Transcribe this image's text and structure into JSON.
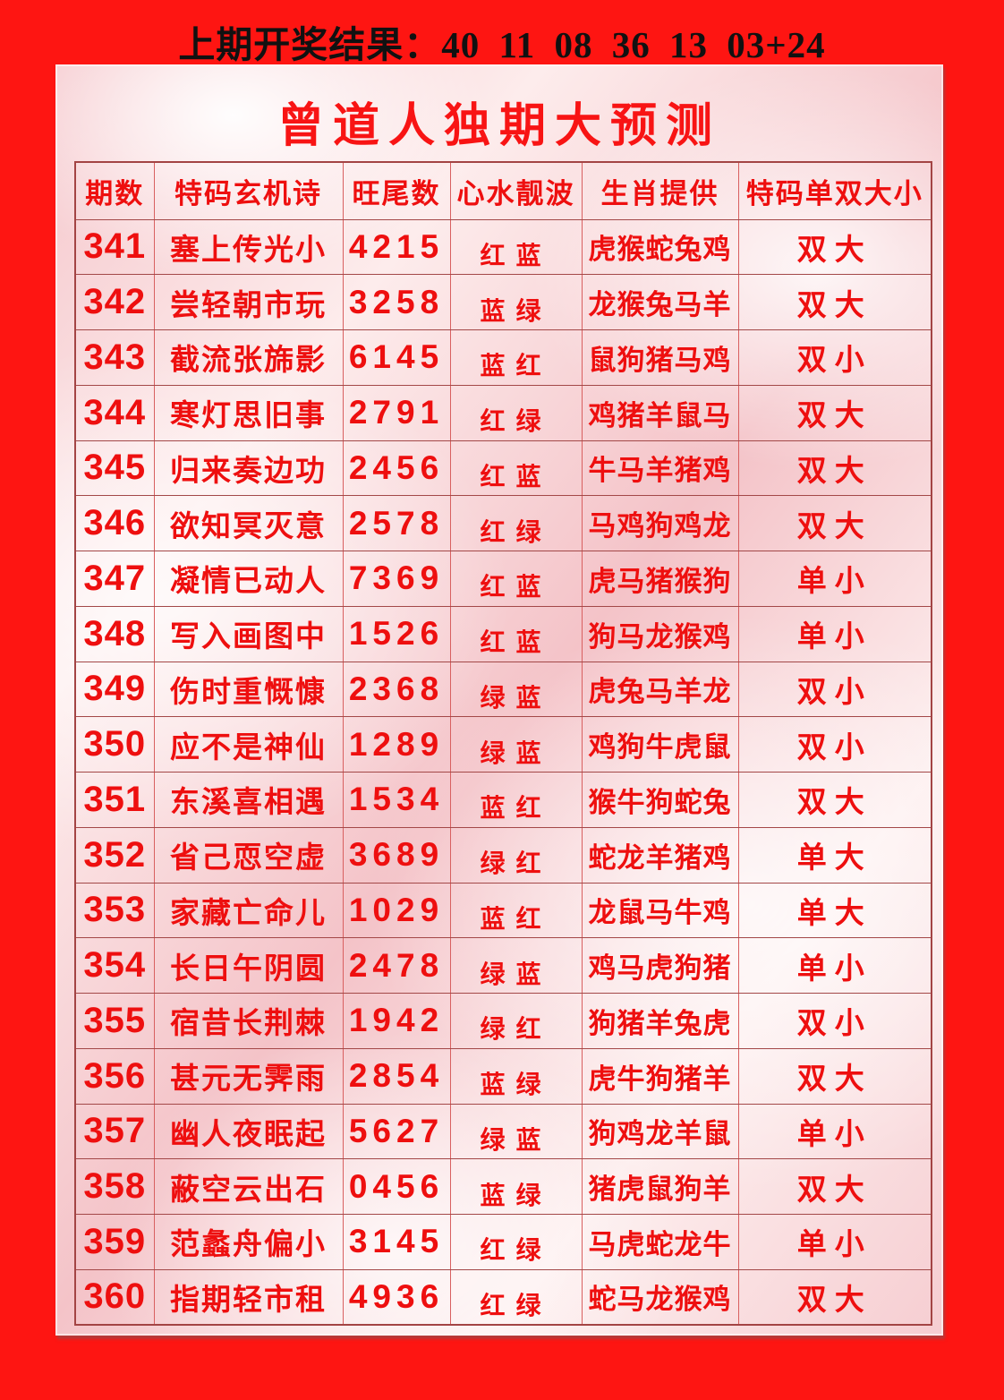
{
  "banner": {
    "text": "上期开奖结果：40 11 08 36 13 03+24"
  },
  "panel": {
    "title": "曾道人独期大预测"
  },
  "colors": {
    "page_background": "#fe1512",
    "table_text_red": "#ee0f0f",
    "title_red": "#f81414",
    "banner_text": "#111111",
    "grid_line": "#b84f4f"
  },
  "table": {
    "column_keys": [
      "issue",
      "poem",
      "tail",
      "wave",
      "zodiac",
      "size"
    ],
    "headers": [
      "期数",
      "特码玄机诗",
      "旺尾数",
      "心水靓波",
      "生肖提供",
      "特码单双大小"
    ],
    "rows": [
      {
        "issue": "341",
        "poem": "塞上传光小",
        "tail": "4215",
        "wave": "红蓝",
        "zodiac": "虎猴蛇兔鸡",
        "size": "双大"
      },
      {
        "issue": "342",
        "poem": "尝轻朝市玩",
        "tail": "3258",
        "wave": "蓝绿",
        "zodiac": "龙猴兔马羊",
        "size": "双大"
      },
      {
        "issue": "343",
        "poem": "截流张旆影",
        "tail": "6145",
        "wave": "蓝红",
        "zodiac": "鼠狗猪马鸡",
        "size": "双小"
      },
      {
        "issue": "344",
        "poem": "寒灯思旧事",
        "tail": "2791",
        "wave": "红绿",
        "zodiac": "鸡猪羊鼠马",
        "size": "双大"
      },
      {
        "issue": "345",
        "poem": "归来奏边功",
        "tail": "2456",
        "wave": "红蓝",
        "zodiac": "牛马羊猪鸡",
        "size": "双大"
      },
      {
        "issue": "346",
        "poem": "欲知冥灭意",
        "tail": "2578",
        "wave": "红绿",
        "zodiac": "马鸡狗鸡龙",
        "size": "双大"
      },
      {
        "issue": "347",
        "poem": "凝情已动人",
        "tail": "7369",
        "wave": "红蓝",
        "zodiac": "虎马猪猴狗",
        "size": "单小"
      },
      {
        "issue": "348",
        "poem": "写入画图中",
        "tail": "1526",
        "wave": "红蓝",
        "zodiac": "狗马龙猴鸡",
        "size": "单小"
      },
      {
        "issue": "349",
        "poem": "伤时重慨慷",
        "tail": "2368",
        "wave": "绿蓝",
        "zodiac": "虎兔马羊龙",
        "size": "双小"
      },
      {
        "issue": "350",
        "poem": "应不是神仙",
        "tail": "1289",
        "wave": "绿蓝",
        "zodiac": "鸡狗牛虎鼠",
        "size": "双小"
      },
      {
        "issue": "351",
        "poem": "东溪喜相遇",
        "tail": "1534",
        "wave": "蓝红",
        "zodiac": "猴牛狗蛇兔",
        "size": "双大"
      },
      {
        "issue": "352",
        "poem": "省己恧空虚",
        "tail": "3689",
        "wave": "绿红",
        "zodiac": "蛇龙羊猪鸡",
        "size": "单大"
      },
      {
        "issue": "353",
        "poem": "家藏亡命儿",
        "tail": "1029",
        "wave": "蓝红",
        "zodiac": "龙鼠马牛鸡",
        "size": "单大"
      },
      {
        "issue": "354",
        "poem": "长日午阴圆",
        "tail": "2478",
        "wave": "绿蓝",
        "zodiac": "鸡马虎狗猪",
        "size": "单小"
      },
      {
        "issue": "355",
        "poem": "宿昔长荆棘",
        "tail": "1942",
        "wave": "绿红",
        "zodiac": "狗猪羊兔虎",
        "size": "双小"
      },
      {
        "issue": "356",
        "poem": "甚元无霁雨",
        "tail": "2854",
        "wave": "蓝绿",
        "zodiac": "虎牛狗猪羊",
        "size": "双大"
      },
      {
        "issue": "357",
        "poem": "幽人夜眠起",
        "tail": "5627",
        "wave": "绿蓝",
        "zodiac": "狗鸡龙羊鼠",
        "size": "单小"
      },
      {
        "issue": "358",
        "poem": "蔽空云出石",
        "tail": "0456",
        "wave": "蓝绿",
        "zodiac": "猪虎鼠狗羊",
        "size": "双大"
      },
      {
        "issue": "359",
        "poem": "范蠡舟偏小",
        "tail": "3145",
        "wave": "红绿",
        "zodiac": "马虎蛇龙牛",
        "size": "单小"
      },
      {
        "issue": "360",
        "poem": "指期轻市租",
        "tail": "4936",
        "wave": "红绿",
        "zodiac": "蛇马龙猴鸡",
        "size": "双大"
      }
    ]
  }
}
